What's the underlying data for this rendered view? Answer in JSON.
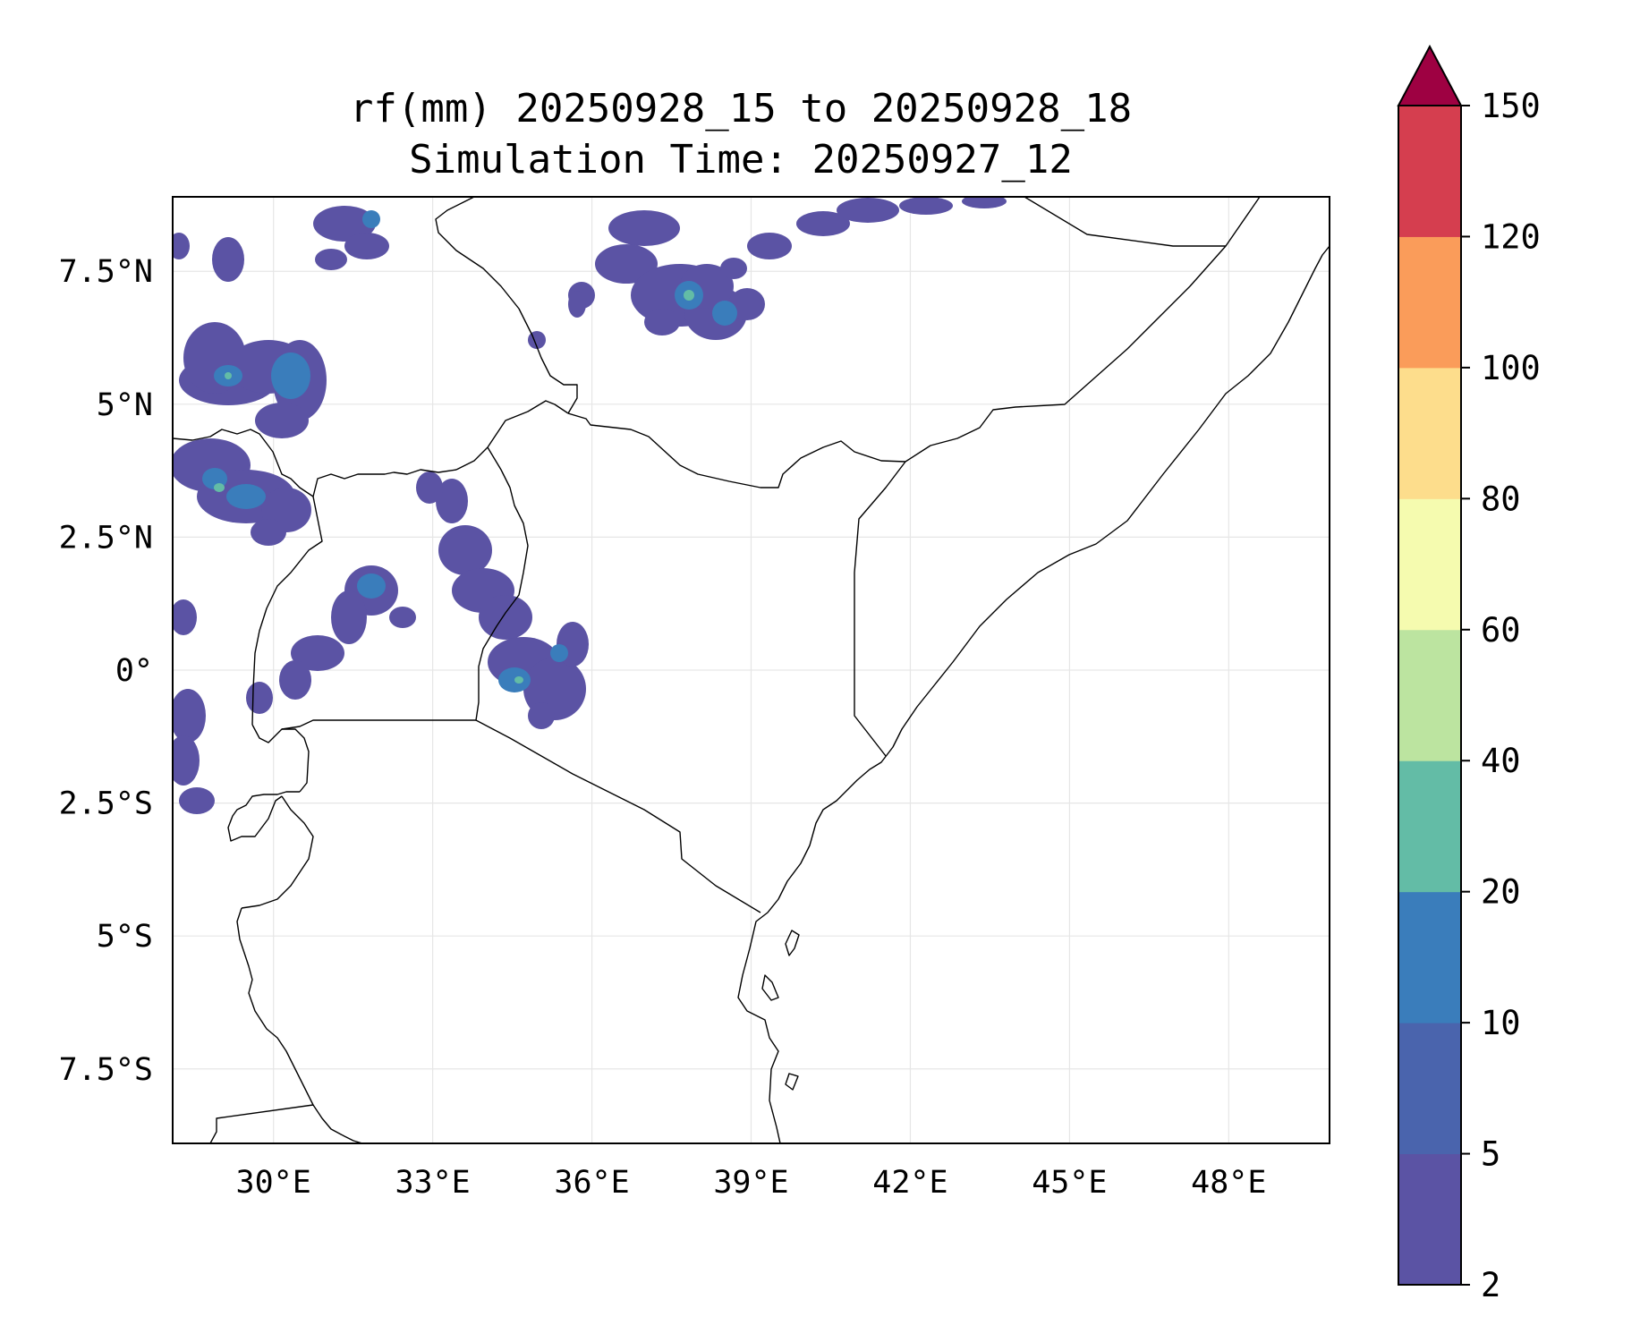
{
  "title_line1": "rf(mm) 20250928_15 to 20250928_18",
  "title_line2": "Simulation Time: 20250927_12",
  "map": {
    "lon_range": [
      28.1,
      49.9
    ],
    "lat_range": [
      -8.9,
      8.9
    ],
    "x_ticks": [
      {
        "lon": 30,
        "label": "30°E"
      },
      {
        "lon": 33,
        "label": "33°E"
      },
      {
        "lon": 36,
        "label": "36°E"
      },
      {
        "lon": 39,
        "label": "39°E"
      },
      {
        "lon": 42,
        "label": "42°E"
      },
      {
        "lon": 45,
        "label": "45°E"
      },
      {
        "lon": 48,
        "label": "48°E"
      }
    ],
    "y_ticks": [
      {
        "lat": 7.5,
        "label": "7.5°N"
      },
      {
        "lat": 5,
        "label": "5°N"
      },
      {
        "lat": 2.5,
        "label": "2.5°N"
      },
      {
        "lat": 0,
        "label": "0°"
      },
      {
        "lat": -2.5,
        "label": "2.5°S"
      },
      {
        "lat": -5,
        "label": "5°S"
      },
      {
        "lat": -7.5,
        "label": "7.5°S"
      }
    ],
    "rain_color_low": "#5b53a4",
    "rain_color_mid": "#3a7dbb",
    "rain_color_high": "#63bca6"
  },
  "colorbar": {
    "bounds": [
      2,
      5,
      10,
      20,
      40,
      60,
      80,
      100,
      120,
      150
    ],
    "labels": [
      "2",
      "5",
      "10",
      "20",
      "40",
      "60",
      "80",
      "100",
      "120",
      "150"
    ],
    "colors": [
      "#5b53a4",
      "#4a64ad",
      "#3a7dbb",
      "#63bca6",
      "#bce4a0",
      "#f5fbaf",
      "#fddd8c",
      "#fa9c5a",
      "#d53e4f"
    ],
    "extend_color": "#9e0142"
  }
}
